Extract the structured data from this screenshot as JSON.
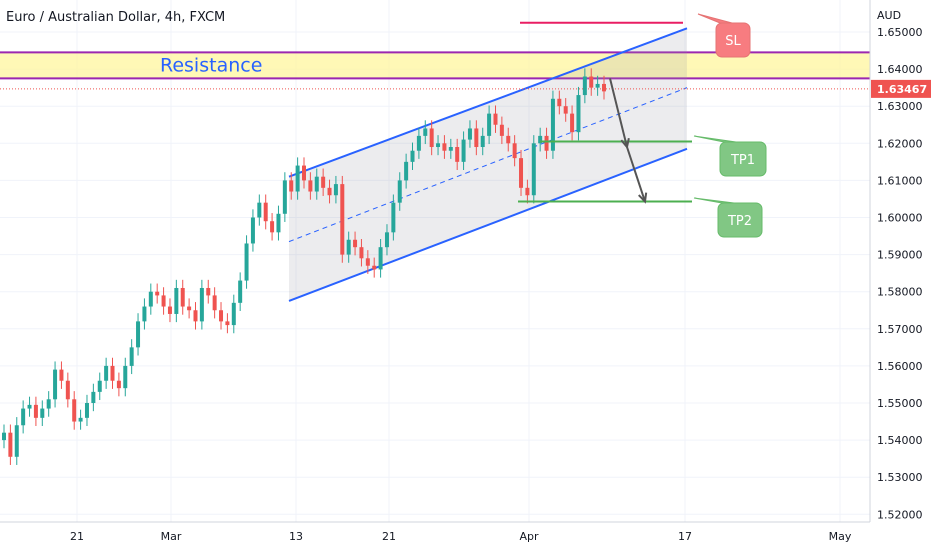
{
  "header": {
    "title": "Euro / Australian Dollar, 4h, FXCM",
    "currency": "AUD"
  },
  "colors": {
    "up": "#26a69a",
    "down": "#ef5350",
    "channel": "#2962ff",
    "resistance_fill": "#fff59d",
    "resistance_border": "#9c27b0",
    "sl": "#f77c80",
    "sl_line": "#e91e63",
    "tp": "#81c784",
    "tp_line": "#4caf50",
    "arrow": "#555555"
  },
  "annotations": {
    "resistance_label": "Resistance",
    "sl_label": "SL",
    "tp1_label": "TP1",
    "tp2_label": "TP2"
  },
  "chart_data": {
    "type": "candlestick",
    "title": "Euro / Australian Dollar, 4h, FXCM",
    "ylabel": "AUD",
    "ylim": [
      1.516,
      1.654
    ],
    "y_ticks": [
      "1.65000",
      "1.64000",
      "1.63000",
      "1.62000",
      "1.61000",
      "1.60000",
      "1.59000",
      "1.58000",
      "1.57000",
      "1.56000",
      "1.55000",
      "1.54000",
      "1.53000",
      "1.52000"
    ],
    "x_ticks": [
      "21",
      "Mar",
      "13",
      "21",
      "Apr",
      "17",
      "May"
    ],
    "current_price": "1.63467",
    "current_price_value": 1.63467,
    "levels": {
      "resistance_top": 1.6445,
      "resistance_bottom": 1.6375,
      "stop_loss": 1.6525,
      "take_profit_1": 1.6205,
      "take_profit_2": 1.6043
    },
    "channel": {
      "upper": [
        [
          "Mar 13",
          1.611
        ],
        [
          "Apr 17",
          1.651
        ]
      ],
      "lower": [
        [
          "Mar 13",
          1.5775
        ],
        [
          "Apr 17",
          1.6185
        ]
      ],
      "mid": [
        [
          "Mar 13",
          1.5935
        ],
        [
          "Apr 17",
          1.635
        ]
      ]
    },
    "projection_path": [
      1.6375,
      1.619,
      1.6043
    ],
    "series": [
      {
        "values": [
          1.542,
          1.5355,
          1.544,
          1.5485,
          1.5495,
          1.546,
          1.5485,
          1.551,
          1.559,
          1.556,
          1.551,
          1.545,
          1.546,
          1.55,
          1.553,
          1.556,
          1.56,
          1.556,
          1.554,
          1.56,
          1.565,
          1.572,
          1.576,
          1.58,
          1.579,
          1.576,
          1.574,
          1.581,
          1.576,
          1.575,
          1.572,
          1.581,
          1.579,
          1.575,
          1.572,
          1.571,
          1.577,
          1.583,
          1.593,
          1.6,
          1.604,
          1.599,
          1.596,
          1.601,
          1.61,
          1.607,
          1.614,
          1.61,
          1.607,
          1.611,
          1.608,
          1.606,
          1.609,
          1.59,
          1.594,
          1.592,
          1.589,
          1.587,
          1.586,
          1.592,
          1.596,
          1.604,
          1.61,
          1.615,
          1.618,
          1.622,
          1.624,
          1.619,
          1.62,
          1.618,
          1.619,
          1.615,
          1.621,
          1.624,
          1.619,
          1.622,
          1.628,
          1.625,
          1.622,
          1.62,
          1.616,
          1.608,
          1.606,
          1.62,
          1.622,
          1.618,
          1.632,
          1.63,
          1.628,
          1.623,
          1.633,
          1.638,
          1.635,
          1.636,
          1.634
        ]
      }
    ]
  }
}
